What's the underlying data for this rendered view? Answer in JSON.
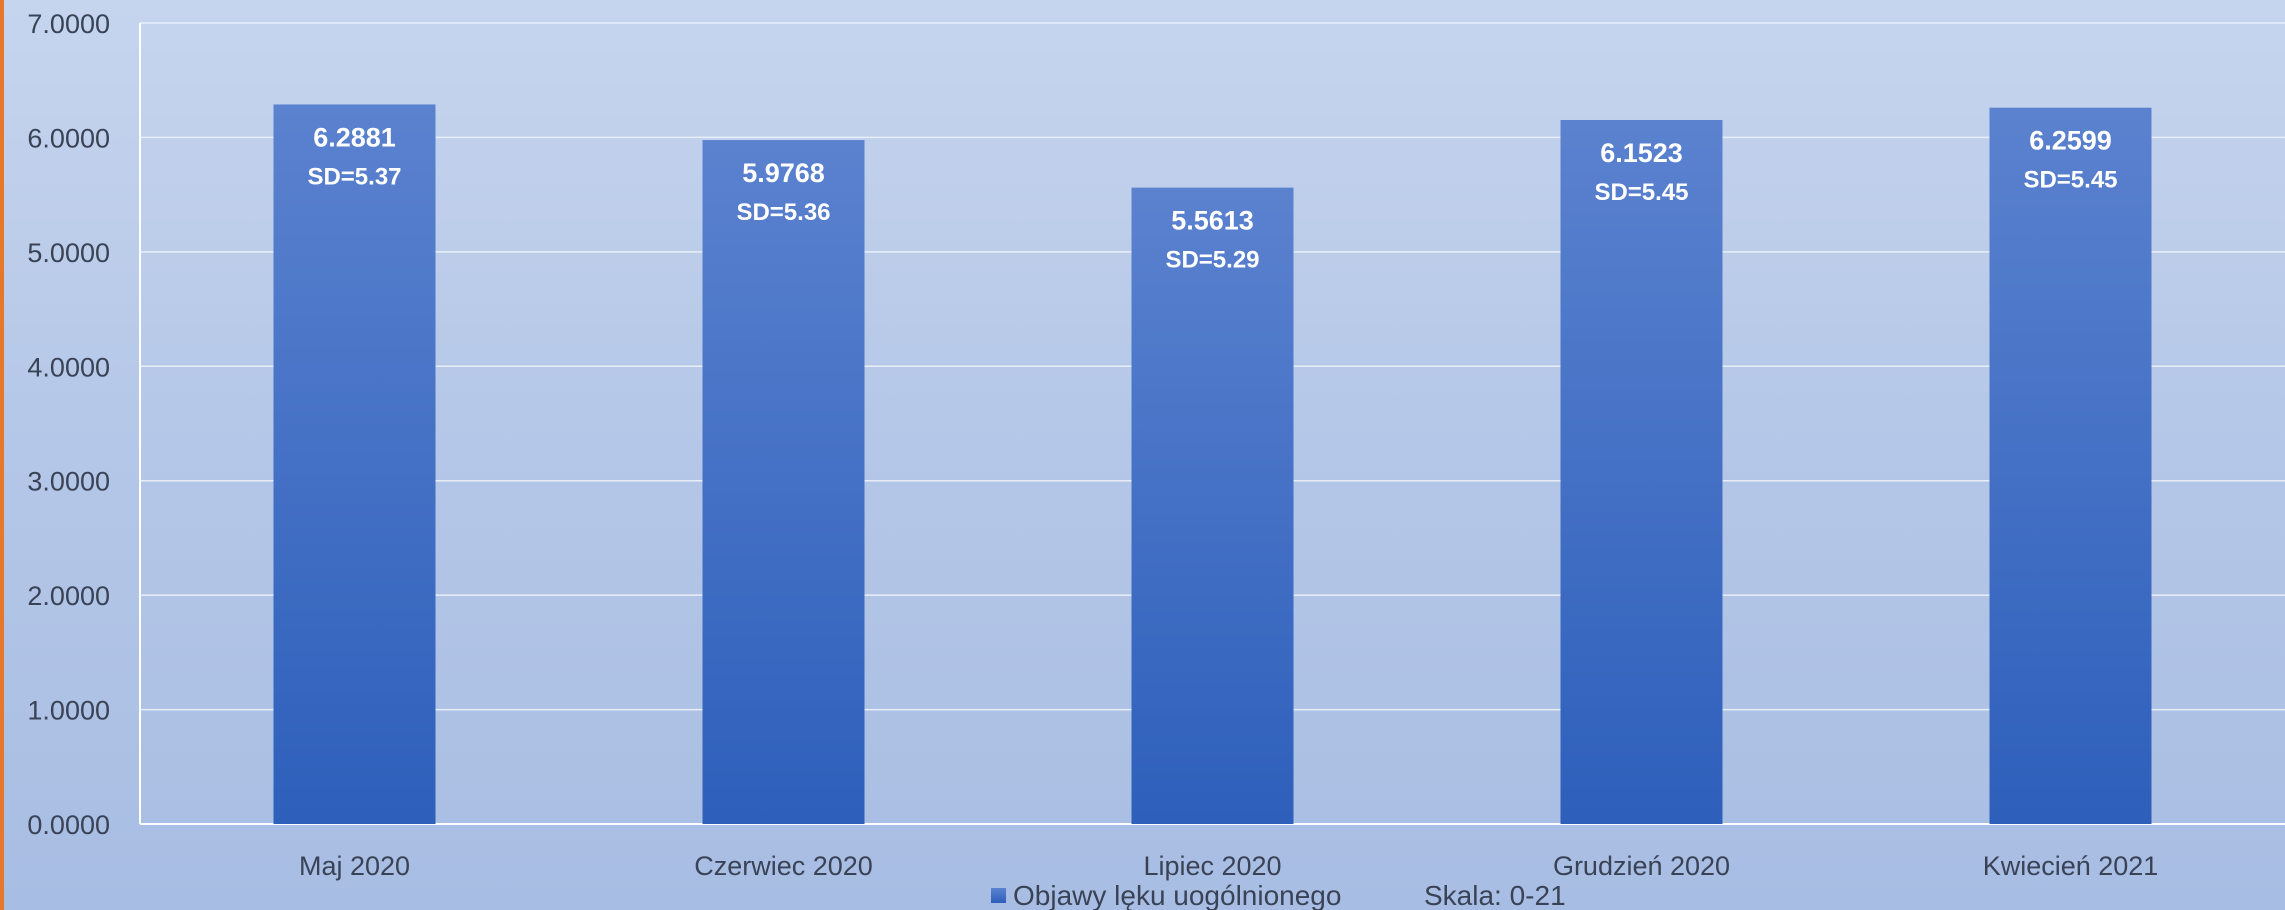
{
  "chart_data": {
    "type": "bar",
    "title": "",
    "xlabel": "",
    "ylabel": "",
    "categories": [
      "Maj 2020",
      "Czerwiec 2020",
      "Lipiec 2020",
      "Grudzień 2020",
      "Kwiecień 2021"
    ],
    "series": [
      {
        "name": "Objawy lęku uogólnionego",
        "values": [
          6.2881,
          5.9768,
          5.5613,
          6.1523,
          6.2599
        ],
        "value_labels": [
          "6.2881",
          "5.9768",
          "5.5613",
          "6.1523",
          "6.2599"
        ],
        "sd_labels": [
          "SD=5.37",
          "SD=5.36",
          "SD=5.29",
          "SD=5.45",
          "SD=5.45"
        ]
      }
    ],
    "ylim": [
      0,
      7
    ],
    "y_ticks": [
      "0.0000",
      "1.0000",
      "2.0000",
      "3.0000",
      "4.0000",
      "5.0000",
      "6.0000",
      "7.0000"
    ],
    "grid": true,
    "legend_position": "bottom",
    "note": "Skala: 0-21",
    "colors": {
      "bar_top": "#5b82cf",
      "bar_bottom": "#2d5fbb",
      "gridline": "#e8eef8",
      "axis": "#ffffff",
      "accent_edge": "#e5782a"
    }
  }
}
